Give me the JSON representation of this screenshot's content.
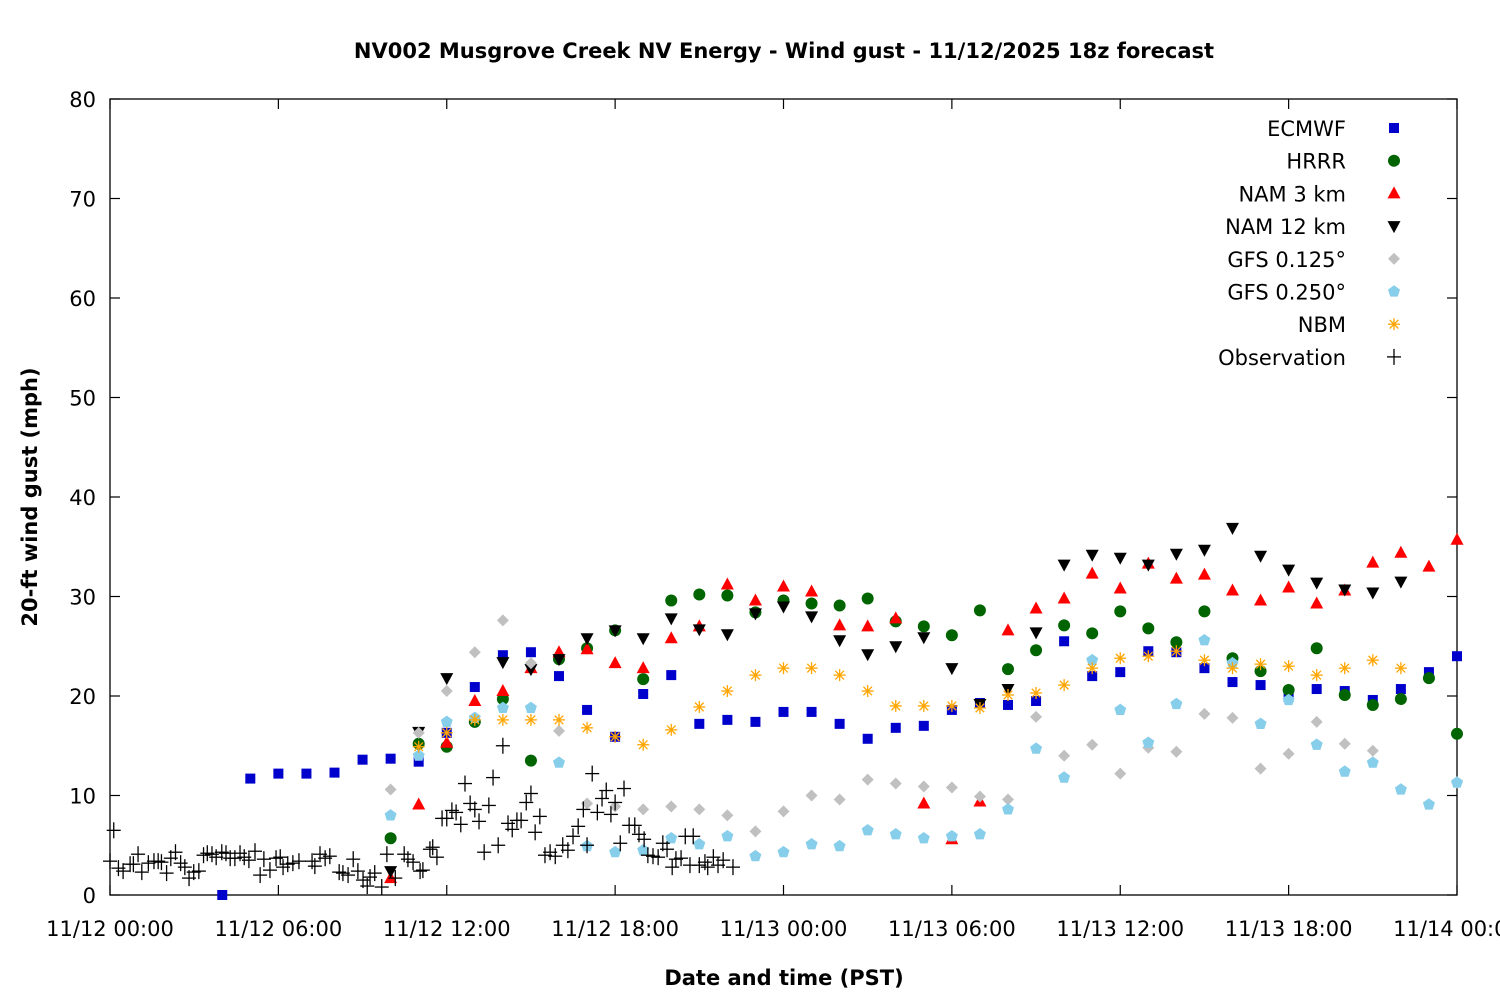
{
  "chart_data": {
    "type": "scatter",
    "title": "NV002 Musgrove Creek NV Energy - Wind gust - 11/12/2025 18z forecast",
    "xlabel": "Date and time (PST)",
    "ylabel": "20-ft wind gust (mph)",
    "xlim": [
      "11/12 00:00",
      "11/14 00:00"
    ],
    "ylim": [
      0,
      80
    ],
    "grid": false,
    "legend_position": "top-right",
    "x_ticks": [
      "11/12 00:00",
      "11/12 06:00",
      "11/12 12:00",
      "11/12 18:00",
      "11/13 00:00",
      "11/13 06:00",
      "11/13 12:00",
      "11/13 18:00",
      "11/14 00:00"
    ],
    "y_ticks": [
      "0",
      "10",
      "20",
      "30",
      "40",
      "50",
      "60",
      "70",
      "80"
    ],
    "x": [
      "11/12 04:00",
      "11/12 05:00",
      "11/12 06:00",
      "11/12 07:00",
      "11/12 08:00",
      "11/12 09:00",
      "11/12 10:00",
      "11/12 11:00",
      "11/12 12:00",
      "11/12 13:00",
      "11/12 14:00",
      "11/12 15:00",
      "11/12 16:00",
      "11/12 17:00",
      "11/12 18:00",
      "11/12 19:00",
      "11/12 20:00",
      "11/12 21:00",
      "11/12 22:00",
      "11/12 23:00",
      "11/13 00:00",
      "11/13 01:00",
      "11/13 02:00",
      "11/13 03:00",
      "11/13 04:00",
      "11/13 05:00",
      "11/13 06:00",
      "11/13 07:00",
      "11/13 08:00",
      "11/13 09:00",
      "11/13 10:00",
      "11/13 11:00",
      "11/13 12:00",
      "11/13 13:00",
      "11/13 14:00",
      "11/13 15:00",
      "11/13 16:00",
      "11/13 17:00",
      "11/13 18:00",
      "11/13 19:00",
      "11/13 20:00",
      "11/13 21:00",
      "11/13 22:00",
      "11/13 23:00",
      "11/14 00:00"
    ],
    "series": [
      {
        "name": "ECMWF",
        "color": "#0000cc",
        "marker": "square",
        "values": [
          0.0,
          11.7,
          12.2,
          12.2,
          12.3,
          13.6,
          13.7,
          13.4,
          16.3,
          20.9,
          24.1,
          24.4,
          22.0,
          18.6,
          15.9,
          20.2,
          22.1,
          17.2,
          17.6,
          17.4,
          18.4,
          18.4,
          17.2,
          15.7,
          16.8,
          17.0,
          18.6,
          19.3,
          19.1,
          19.5,
          25.5,
          22.0,
          22.4,
          24.5,
          24.4,
          22.8,
          21.4,
          21.1,
          19.9,
          20.7,
          20.5,
          19.6,
          20.7,
          22.4,
          24.0
        ]
      },
      {
        "name": "HRRR",
        "color": "#006400",
        "marker": "circle",
        "values": [
          null,
          null,
          null,
          null,
          null,
          null,
          5.7,
          15.2,
          14.9,
          17.4,
          19.7,
          13.5,
          23.7,
          24.8,
          26.6,
          21.7,
          29.6,
          30.2,
          30.1,
          28.4,
          29.6,
          29.3,
          29.1,
          29.8,
          27.5,
          27.0,
          26.1,
          28.6,
          22.7,
          24.6,
          27.1,
          26.3,
          28.5,
          26.8,
          25.4,
          28.5,
          23.8,
          22.5,
          20.6,
          24.8,
          20.1,
          19.1,
          19.7,
          21.8,
          16.2
        ]
      },
      {
        "name": "NAM 3 km",
        "color": "#ff0000",
        "marker": "triangle-up",
        "values": [
          null,
          null,
          null,
          null,
          null,
          null,
          1.7,
          9.1,
          15.3,
          19.5,
          20.5,
          22.8,
          24.4,
          24.7,
          23.3,
          22.8,
          25.8,
          27.0,
          31.2,
          29.6,
          31.0,
          30.5,
          27.1,
          27.0,
          27.8,
          9.2,
          5.6,
          9.4,
          26.6,
          28.8,
          29.8,
          32.3,
          30.8,
          33.3,
          31.8,
          32.2,
          30.6,
          29.6,
          30.9,
          29.3,
          30.6,
          33.4,
          34.4,
          33.0,
          35.7
        ]
      },
      {
        "name": "NAM 12 km",
        "color": "#000000",
        "marker": "triangle-down",
        "values": [
          null,
          null,
          null,
          null,
          null,
          null,
          2.4,
          16.4,
          21.8,
          null,
          23.4,
          22.7,
          23.7,
          25.8,
          26.6,
          25.8,
          27.8,
          26.7,
          26.2,
          28.3,
          29.0,
          28.0,
          25.6,
          24.2,
          25.0,
          25.9,
          22.8,
          19.2,
          20.7,
          26.4,
          33.2,
          34.2,
          33.9,
          33.2,
          34.3,
          34.7,
          36.9,
          34.1,
          32.7,
          31.4,
          30.7,
          30.4,
          31.5,
          null,
          null
        ]
      },
      {
        "name": "GFS 0.125°",
        "color": "#c0c0c0",
        "marker": "diamond",
        "values": [
          null,
          null,
          null,
          null,
          null,
          null,
          10.6,
          16.3,
          20.5,
          24.4,
          27.6,
          23.3,
          16.5,
          9.2,
          8.9,
          8.6,
          8.9,
          8.6,
          8.0,
          6.4,
          8.4,
          10.0,
          9.6,
          11.6,
          11.2,
          10.9,
          10.8,
          9.9,
          9.6,
          17.9,
          14.0,
          15.1,
          12.2,
          14.8,
          14.4,
          18.2,
          17.8,
          12.7,
          14.2,
          17.4,
          15.2,
          14.5,
          null,
          null,
          11.3
        ]
      },
      {
        "name": "GFS 0.250°",
        "color": "#87ceeb",
        "marker": "pentagon",
        "values": [
          null,
          null,
          null,
          null,
          null,
          null,
          8.0,
          14.0,
          17.4,
          17.8,
          18.8,
          18.8,
          13.3,
          4.9,
          4.3,
          4.5,
          5.7,
          5.1,
          5.9,
          3.9,
          4.3,
          5.1,
          4.9,
          6.5,
          6.1,
          5.7,
          5.9,
          6.1,
          8.6,
          14.7,
          11.8,
          23.6,
          18.6,
          15.3,
          19.2,
          25.6,
          23.3,
          17.2,
          19.6,
          15.1,
          12.4,
          13.3,
          10.6,
          9.1,
          11.3
        ]
      },
      {
        "name": "NBM",
        "color": "#ffa500",
        "marker": "asterisk",
        "values": [
          null,
          null,
          null,
          null,
          null,
          null,
          null,
          14.9,
          16.3,
          17.6,
          17.6,
          17.6,
          17.6,
          16.8,
          15.9,
          15.1,
          16.6,
          18.9,
          20.5,
          22.1,
          22.8,
          22.8,
          22.1,
          20.5,
          19.0,
          19.0,
          19.0,
          18.8,
          20.1,
          20.3,
          21.1,
          22.8,
          23.8,
          24.0,
          24.5,
          23.6,
          22.8,
          23.2,
          23.0,
          22.1,
          22.8,
          23.6,
          22.8,
          null,
          null
        ]
      }
    ],
    "observation": {
      "name": "Observation",
      "color": "#000000",
      "marker": "plus",
      "points": [
        [
          "11/12 00:00",
          3.4
        ],
        [
          "11/12 00:08",
          6.5
        ],
        [
          "11/12 00:18",
          2.7
        ],
        [
          "11/12 00:28",
          2.4
        ],
        [
          "11/12 00:43",
          3.1
        ],
        [
          "11/12 00:50",
          3.1
        ],
        [
          "11/12 01:00",
          4.1
        ],
        [
          "11/12 01:08",
          2.3
        ],
        [
          "11/12 01:22",
          3.2
        ],
        [
          "11/12 01:34",
          3.4
        ],
        [
          "11/12 01:43",
          3.4
        ],
        [
          "11/12 01:50",
          3.3
        ],
        [
          "11/12 02:01",
          2.2
        ],
        [
          "11/12 02:10",
          3.7
        ],
        [
          "11/12 02:20",
          4.3
        ],
        [
          "11/12 02:31",
          3.2
        ],
        [
          "11/12 02:40",
          2.8
        ],
        [
          "11/12 02:49",
          1.7
        ],
        [
          "11/12 02:59",
          2.3
        ],
        [
          "11/12 03:10",
          2.4
        ],
        [
          "11/12 03:20",
          4.0
        ],
        [
          "11/12 03:28",
          4.2
        ],
        [
          "11/12 03:38",
          4.1
        ],
        [
          "11/12 03:47",
          3.8
        ],
        [
          "11/12 03:59",
          4.3
        ],
        [
          "11/12 04:08",
          4.2
        ],
        [
          "11/12 04:17",
          3.7
        ],
        [
          "11/12 04:27",
          3.7
        ],
        [
          "11/12 04:38",
          4.2
        ],
        [
          "11/12 04:47",
          3.8
        ],
        [
          "11/12 04:57",
          3.5
        ],
        [
          "11/12 05:10",
          4.4
        ],
        [
          "11/12 05:21",
          2.0
        ],
        [
          "11/12 05:29",
          3.6
        ],
        [
          "11/12 05:42",
          2.5
        ],
        [
          "11/12 05:55",
          3.7
        ],
        [
          "11/12 06:04",
          3.8
        ],
        [
          "11/12 06:10",
          2.8
        ],
        [
          "11/12 06:20",
          3.1
        ],
        [
          "11/12 06:31",
          3.2
        ],
        [
          "11/12 06:44",
          3.4
        ],
        [
          "11/12 07:12",
          3.4
        ],
        [
          "11/12 07:18",
          2.9
        ],
        [
          "11/12 07:29",
          4.1
        ],
        [
          "11/12 07:40",
          3.7
        ],
        [
          "11/12 07:50",
          3.9
        ],
        [
          "11/12 08:10",
          2.3
        ],
        [
          "11/12 08:18",
          2.2
        ],
        [
          "11/12 08:29",
          2.0
        ],
        [
          "11/12 08:40",
          3.6
        ],
        [
          "11/12 08:50",
          2.4
        ],
        [
          "11/12 09:01",
          1.5
        ],
        [
          "11/12 09:10",
          0.9
        ],
        [
          "11/12 09:16",
          1.8
        ],
        [
          "11/12 09:26",
          2.2
        ],
        [
          "11/12 09:41",
          0.8
        ],
        [
          "11/12 09:52",
          4.1
        ],
        [
          "11/12 10:10",
          1.7
        ],
        [
          "11/12 10:29",
          4.1
        ],
        [
          "11/12 10:37",
          3.6
        ],
        [
          "11/12 10:48",
          3.3
        ],
        [
          "11/12 11:03",
          2.4
        ],
        [
          "11/12 11:09",
          2.5
        ],
        [
          "11/12 11:24",
          4.6
        ],
        [
          "11/12 11:30",
          4.8
        ],
        [
          "11/12 11:39",
          3.8
        ],
        [
          "11/12 11:50",
          7.7
        ],
        [
          "11/12 12:00",
          7.7
        ],
        [
          "11/12 12:11",
          8.5
        ],
        [
          "11/12 12:20",
          8.3
        ],
        [
          "11/12 12:30",
          7.1
        ],
        [
          "11/12 12:39",
          11.2
        ],
        [
          "11/12 12:50",
          9.2
        ],
        [
          "11/12 13:00",
          8.6
        ],
        [
          "11/12 13:09",
          7.4
        ],
        [
          "11/12 13:20",
          4.3
        ],
        [
          "11/12 13:30",
          9.0
        ],
        [
          "11/12 13:39",
          11.8
        ],
        [
          "11/12 13:50",
          5.0
        ],
        [
          "11/12 14:00",
          15.0
        ],
        [
          "11/12 14:11",
          7.2
        ],
        [
          "11/12 14:20",
          6.6
        ],
        [
          "11/12 14:30",
          7.5
        ],
        [
          "11/12 14:39",
          7.5
        ],
        [
          "11/12 14:50",
          9.3
        ],
        [
          "11/12 15:00",
          10.2
        ],
        [
          "11/12 15:09",
          6.3
        ],
        [
          "11/12 15:19",
          7.9
        ],
        [
          "11/12 15:30",
          4.0
        ],
        [
          "11/12 15:41",
          4.3
        ],
        [
          "11/12 15:52",
          3.9
        ],
        [
          "11/12 16:08",
          5.0
        ],
        [
          "11/12 16:19",
          4.5
        ],
        [
          "11/12 16:30",
          5.9
        ],
        [
          "11/12 16:41",
          6.9
        ],
        [
          "11/12 16:52",
          8.6
        ],
        [
          "11/12 17:00",
          5.0
        ],
        [
          "11/12 17:11",
          12.2
        ],
        [
          "11/12 17:22",
          8.3
        ],
        [
          "11/12 17:32",
          9.7
        ],
        [
          "11/12 17:41",
          10.5
        ],
        [
          "11/12 17:51",
          8.1
        ],
        [
          "11/12 18:00",
          9.3
        ],
        [
          "11/12 18:11",
          5.2
        ],
        [
          "11/12 18:19",
          10.7
        ],
        [
          "11/12 18:30",
          7.0
        ],
        [
          "11/12 18:42",
          7.0
        ],
        [
          "11/12 18:51",
          6.1
        ],
        [
          "11/12 19:02",
          5.6
        ],
        [
          "11/12 19:10",
          4.0
        ],
        [
          "11/12 19:21",
          3.9
        ],
        [
          "11/12 19:32",
          3.8
        ],
        [
          "11/12 19:42",
          5.2
        ],
        [
          "11/12 19:51",
          4.6
        ],
        [
          "11/12 20:02",
          2.8
        ],
        [
          "11/12 20:10",
          3.6
        ],
        [
          "11/12 20:21",
          3.7
        ],
        [
          "11/12 20:30",
          5.9
        ],
        [
          "11/12 20:40",
          3.0
        ],
        [
          "11/12 20:47",
          5.9
        ],
        [
          "11/12 21:00",
          3.0
        ],
        [
          "11/12 21:12",
          3.3
        ],
        [
          "11/12 21:18",
          2.8
        ],
        [
          "11/12 21:30",
          3.8
        ],
        [
          "11/12 21:40",
          3.0
        ],
        [
          "11/12 21:51",
          3.5
        ],
        [
          "11/12 22:12",
          2.8
        ]
      ]
    }
  }
}
